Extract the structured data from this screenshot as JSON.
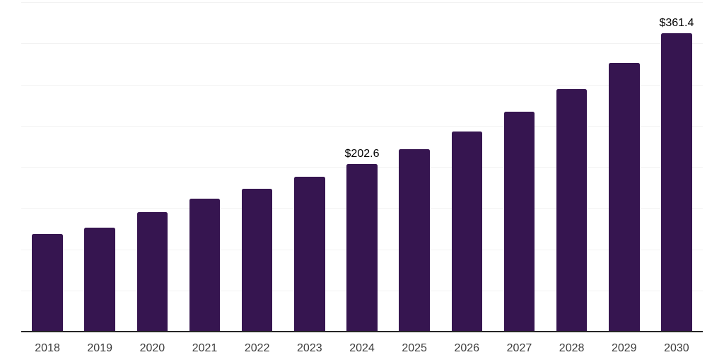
{
  "chart_data": {
    "type": "bar",
    "title": "",
    "xlabel": "",
    "ylabel": "",
    "categories": [
      "2018",
      "2019",
      "2020",
      "2021",
      "2022",
      "2023",
      "2024",
      "2025",
      "2026",
      "2027",
      "2028",
      "2029",
      "2030"
    ],
    "values": [
      118.0,
      125.4,
      144.2,
      160.6,
      172.6,
      187.1,
      202.6,
      220.9,
      242.3,
      265.9,
      293.7,
      325.6,
      361.4
    ],
    "data_labels": [
      "",
      "",
      "",
      "",
      "",
      "",
      "$202.6",
      "",
      "",
      "",
      "",
      "",
      "$361.4"
    ],
    "ylim": [
      0,
      400
    ],
    "gridline_step": 50,
    "grid": true,
    "legend": false,
    "colors": {
      "bar": "#361550",
      "axis_line": "#262626",
      "gridline": "#f2f2f2",
      "tick_label": "#3d3d3d",
      "data_label": "#000000",
      "background": "#ffffff"
    }
  }
}
